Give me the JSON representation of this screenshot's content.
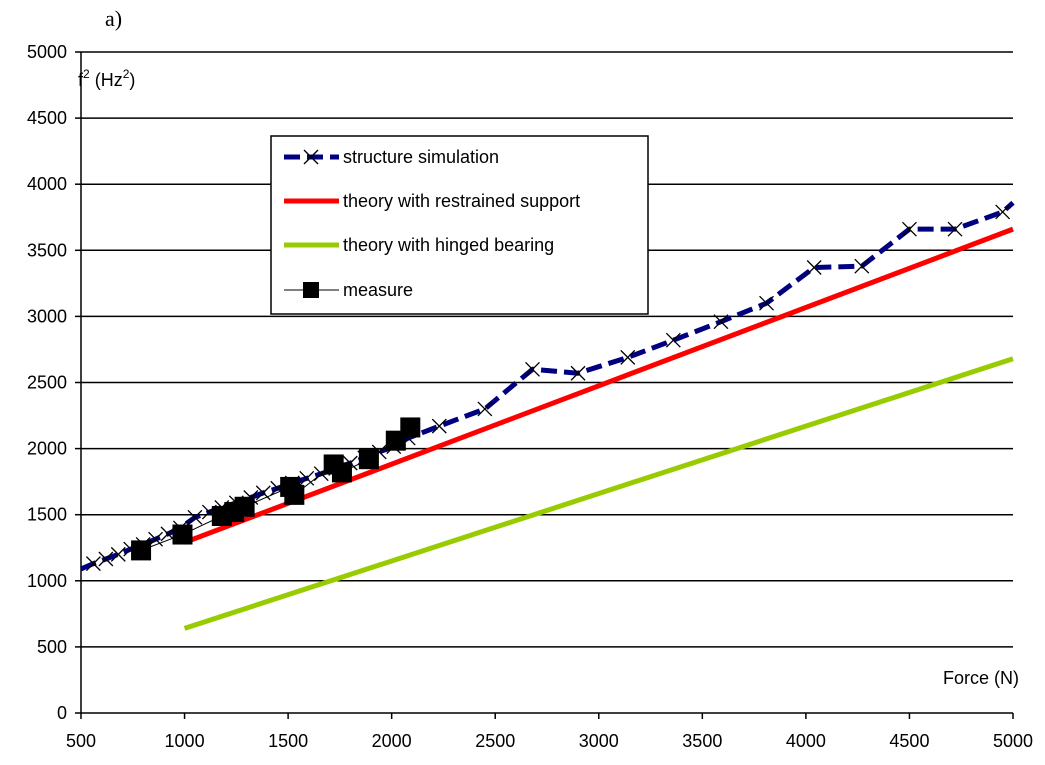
{
  "chart_data": {
    "type": "line",
    "panel_label": "a)",
    "ylabel_base": "f",
    "ylabel_sup": "2",
    "ylabel_unit_open": " (Hz",
    "ylabel_unit_sup": "2",
    "ylabel_unit_close": ")",
    "xlabel": "Force (N)",
    "xlim": [
      500,
      5000
    ],
    "ylim": [
      0,
      5000
    ],
    "grid": true,
    "legend_position": "top-left",
    "x_ticks": [
      500,
      1000,
      1500,
      2000,
      2500,
      3000,
      3500,
      4000,
      4500,
      5000
    ],
    "y_ticks": [
      0,
      500,
      1000,
      1500,
      2000,
      2500,
      3000,
      3500,
      4000,
      4500,
      5000
    ],
    "series": [
      {
        "name": "structure simulation",
        "color": "#000080",
        "style": "dashed-x-markers",
        "x": [
          500,
          560,
          620,
          680,
          740,
          800,
          860,
          920,
          980,
          1050,
          1120,
          1180,
          1250,
          1320,
          1380,
          1450,
          1520,
          1590,
          1660,
          1730,
          1800,
          1870,
          1940,
          2010,
          2080,
          2230,
          2450,
          2680,
          2900,
          3140,
          3360,
          3590,
          3810,
          4040,
          4270,
          4500,
          4720,
          4950,
          5000
        ],
        "y": [
          1090,
          1130,
          1165,
          1200,
          1240,
          1275,
          1315,
          1355,
          1400,
          1480,
          1520,
          1555,
          1590,
          1630,
          1665,
          1700,
          1740,
          1775,
          1810,
          1850,
          1890,
          1930,
          1975,
          2015,
          2080,
          2170,
          2300,
          2600,
          2570,
          2690,
          2820,
          2960,
          3100,
          3370,
          3380,
          3660,
          3660,
          3790,
          3860
        ]
      },
      {
        "name": "theory with restrained support",
        "color": "#ff0000",
        "style": "line",
        "x": [
          1000,
          5000
        ],
        "y": [
          1290,
          3660
        ]
      },
      {
        "name": "theory with hinged bearing",
        "color": "#99cc00",
        "style": "line",
        "x": [
          1000,
          5000
        ],
        "y": [
          640,
          2680
        ]
      },
      {
        "name": "measure",
        "color": "#000000",
        "style": "square-markers",
        "x": [
          790,
          990,
          1180,
          1240,
          1290,
          1510,
          1530,
          1720,
          1760,
          1890,
          2020,
          2090
        ],
        "y": [
          1230,
          1350,
          1490,
          1520,
          1560,
          1710,
          1650,
          1880,
          1820,
          1920,
          2060,
          2160
        ]
      }
    ]
  }
}
